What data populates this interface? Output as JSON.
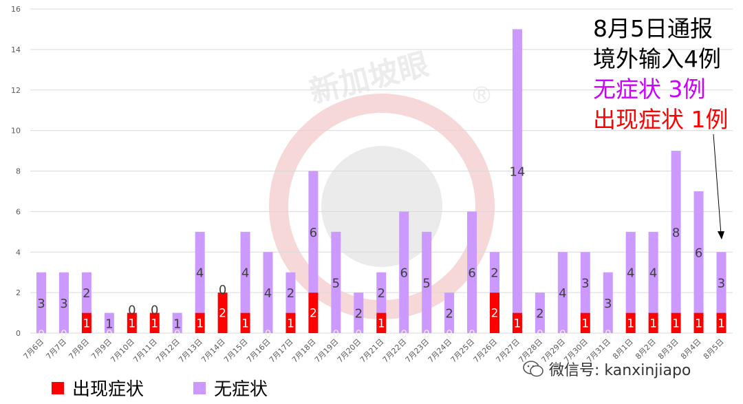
{
  "chart_data": {
    "type": "bar",
    "stacked": true,
    "categories": [
      "7月6日",
      "7月7日",
      "7月8日",
      "7月9日",
      "7月10日",
      "7月11日",
      "7月12日",
      "7月13日",
      "7月14日",
      "7月15日",
      "7月16日",
      "7月17日",
      "7月18日",
      "7月19日",
      "7月20日",
      "7月21日",
      "7月22日",
      "7月23日",
      "7月24日",
      "7月25日",
      "7月26日",
      "7月27日",
      "7月28日",
      "7月29日",
      "7月30日",
      "7月31日",
      "8月1日",
      "8月2日",
      "8月3日",
      "8月4日",
      "8月5日"
    ],
    "series": [
      {
        "name": "出现症状",
        "color": "#ff0000",
        "values": [
          0,
          0,
          1,
          0,
          1,
          1,
          0,
          1,
          2,
          1,
          0,
          1,
          2,
          0,
          0,
          1,
          0,
          0,
          0,
          0,
          2,
          1,
          0,
          0,
          1,
          0,
          1,
          1,
          1,
          1,
          1
        ]
      },
      {
        "name": "无症状",
        "color": "#cc99ff",
        "values": [
          3,
          3,
          2,
          1,
          0,
          0,
          1,
          4,
          0,
          4,
          4,
          2,
          6,
          5,
          2,
          2,
          6,
          5,
          2,
          6,
          2,
          14,
          2,
          4,
          3,
          3,
          4,
          4,
          8,
          6,
          3
        ]
      }
    ],
    "ylim": [
      0,
      16
    ],
    "yticks": [
      "0",
      "2",
      "4",
      "6",
      "8",
      "10",
      "12",
      "14",
      "16"
    ],
    "grid": true,
    "legend_position": "bottom-left",
    "title": "",
    "xlabel": "",
    "ylabel": ""
  },
  "annotation": {
    "line1": "8月5日通报",
    "line2": "境外输入4例",
    "line3": "无症状 3例",
    "line4": "出现症状 1例",
    "line3_color": "#cc00ff",
    "line4_color": "#ff0000"
  },
  "watermark": {
    "text": "新加坡眼",
    "registered_mark": "®"
  },
  "wechat": {
    "label": "微信号: kanxinjiapo",
    "icon": "wechat-icon"
  }
}
